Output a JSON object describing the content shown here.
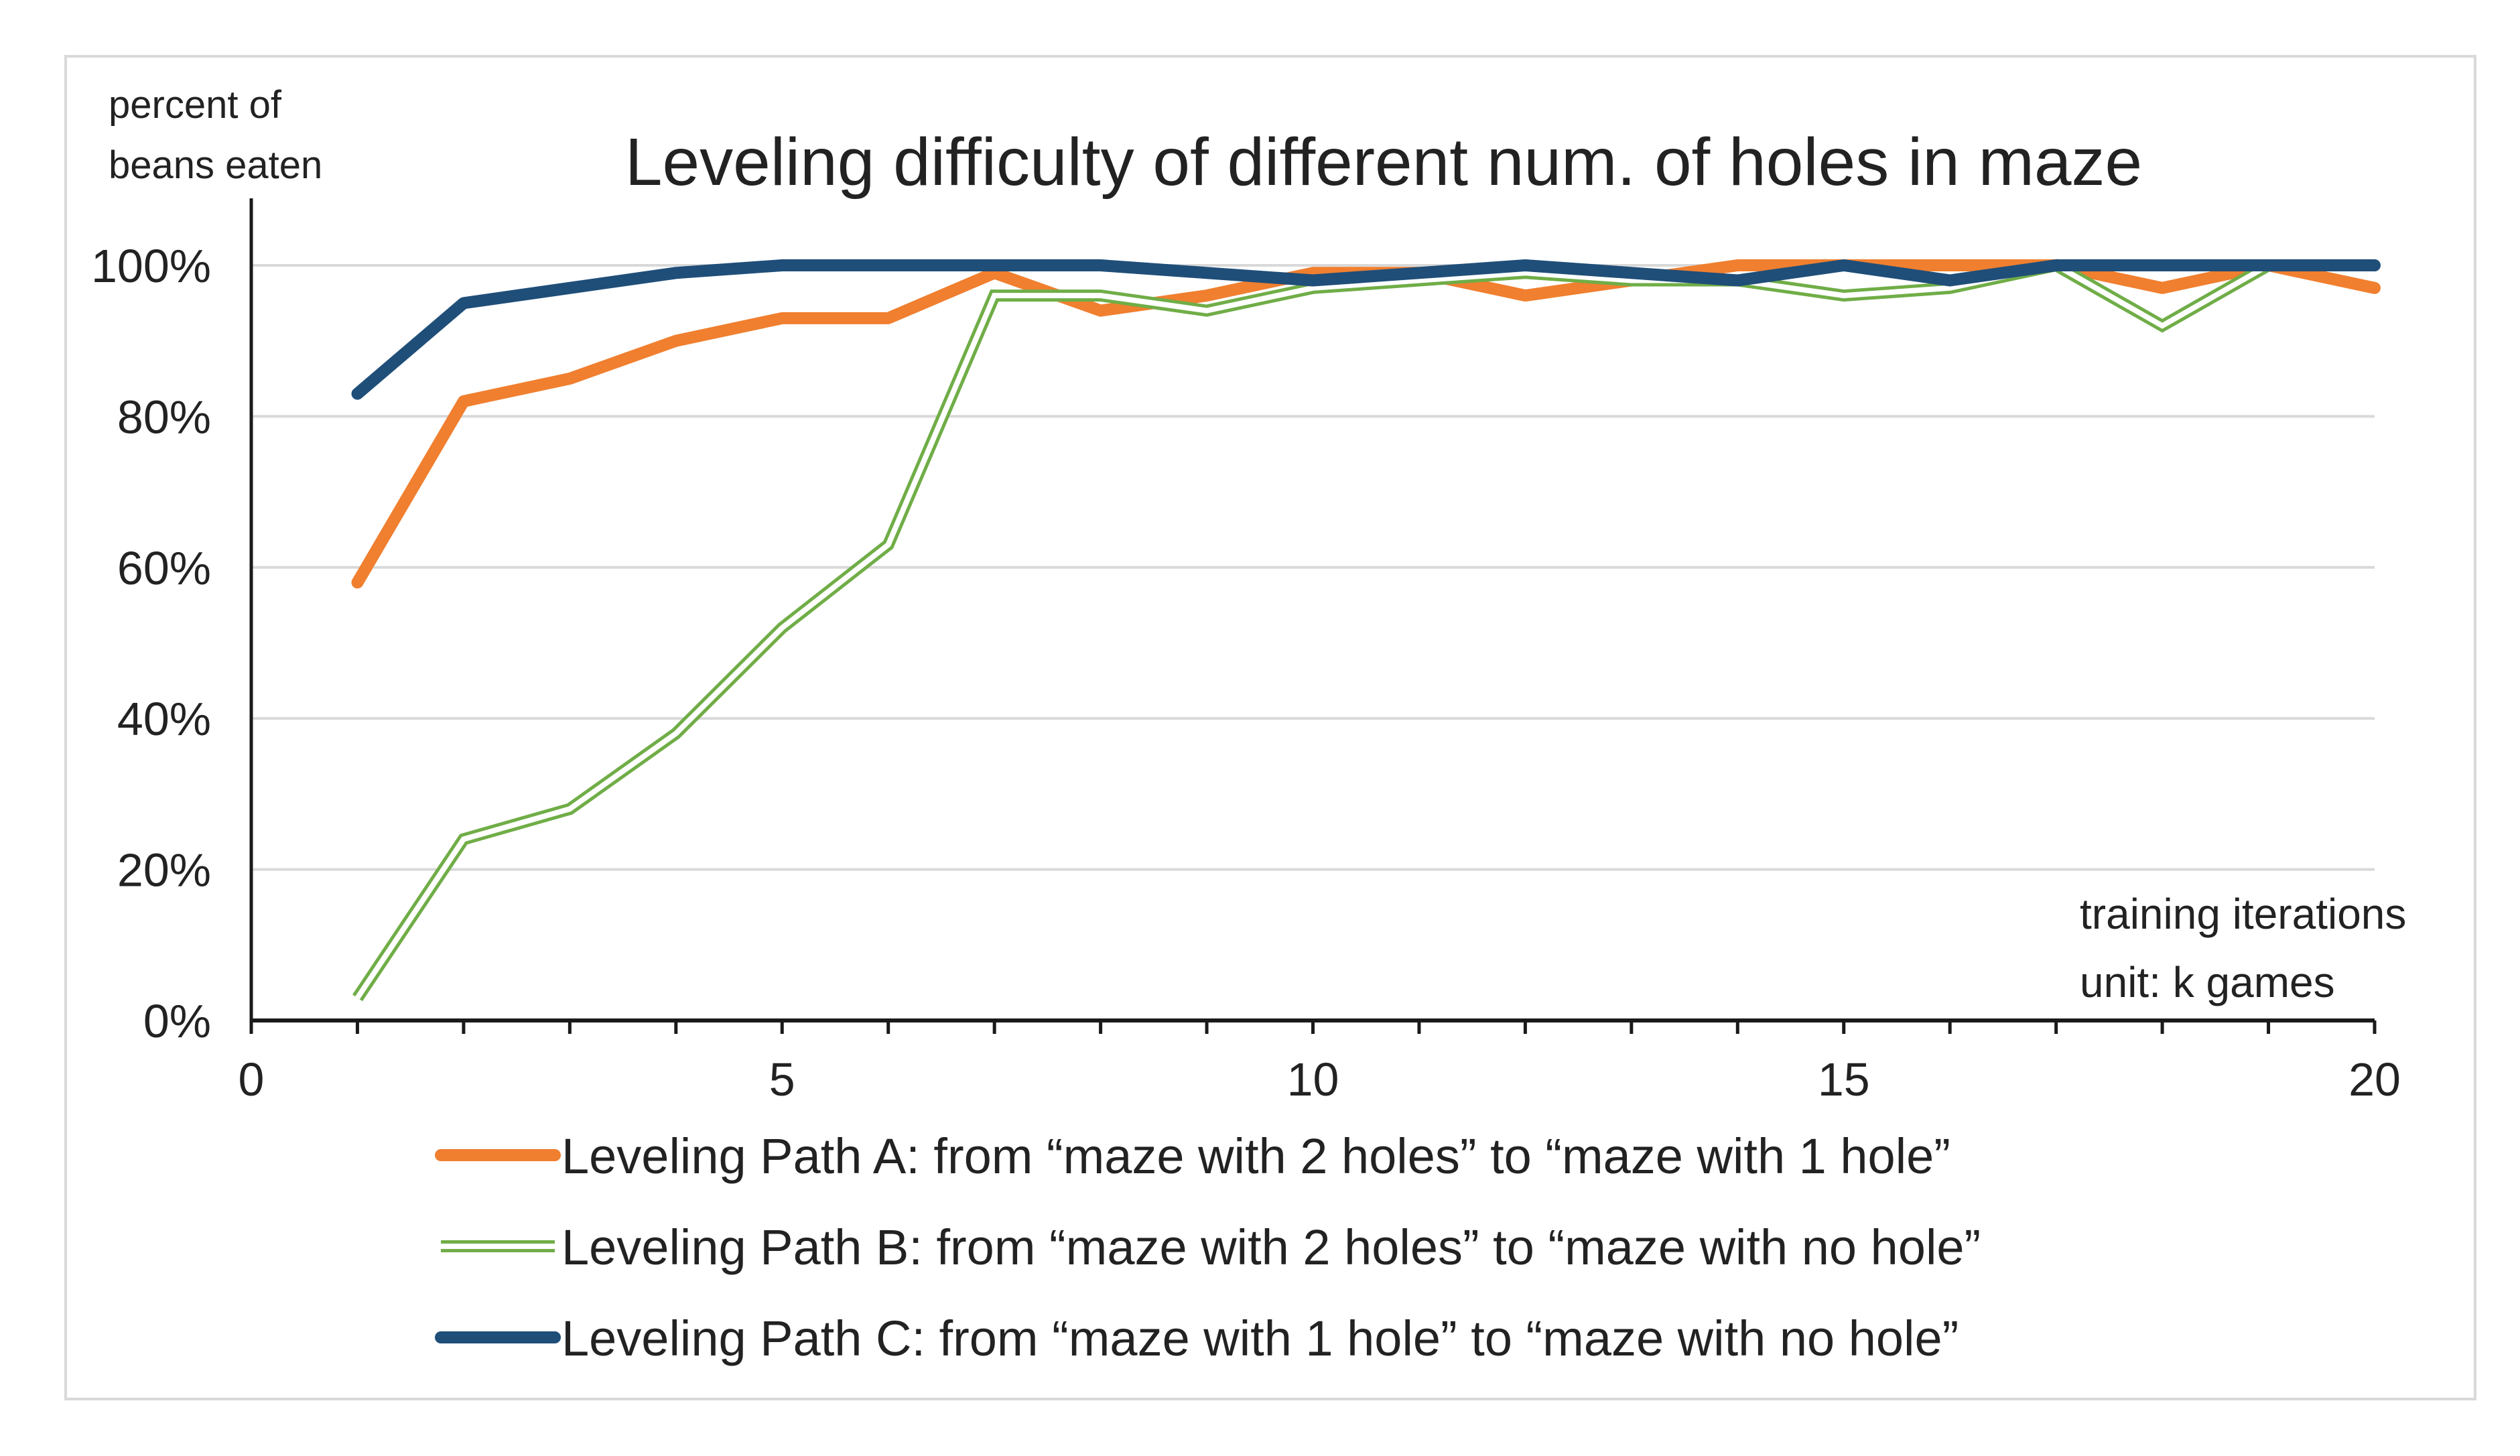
{
  "chart_data": {
    "type": "line",
    "title": "Leveling difficulty of different num. of holes in maze",
    "ylabel_lines": [
      "percent of",
      "beans eaten"
    ],
    "xlabel_lines": [
      "training iterations",
      "unit: k games"
    ],
    "xlim": [
      0,
      20
    ],
    "ylim": [
      0,
      100
    ],
    "x_ticks": [
      0,
      5,
      10,
      15,
      20
    ],
    "y_ticks": [
      0,
      20,
      40,
      60,
      80,
      100
    ],
    "y_tick_labels": [
      "0%",
      "20%",
      "40%",
      "60%",
      "80%",
      "100%"
    ],
    "grid": true,
    "legend_position": "bottom",
    "x": [
      1,
      2,
      3,
      4,
      5,
      6,
      7,
      8,
      9,
      10,
      11,
      12,
      13,
      14,
      15,
      16,
      17,
      18,
      19,
      20
    ],
    "series": [
      {
        "name": "Leveling Path A: from “maze with 2 holes” to “maze with 1 hole”",
        "color": "#f07f2f",
        "style": "solid",
        "values": [
          58,
          82,
          85,
          90,
          93,
          93,
          99,
          94,
          96,
          99,
          99,
          96,
          98,
          100,
          100,
          100,
          100,
          97,
          100,
          97
        ]
      },
      {
        "name": "Leveling Path B: from “maze with 2 holes” to “maze with no hole”",
        "color": "#70ad47",
        "style": "double",
        "values": [
          3,
          24,
          28,
          38,
          52,
          63,
          96,
          96,
          94,
          97,
          98,
          99,
          98,
          98,
          96,
          97,
          100,
          92,
          100,
          100
        ]
      },
      {
        "name": "Leveling Path C: from “maze with 1 hole” to “maze with no hole”",
        "color": "#1f4e79",
        "style": "solid",
        "values": [
          83,
          95,
          97,
          99,
          100,
          100,
          100,
          100,
          99,
          98,
          99,
          100,
          99,
          98,
          100,
          98,
          100,
          100,
          100,
          100
        ]
      }
    ]
  }
}
